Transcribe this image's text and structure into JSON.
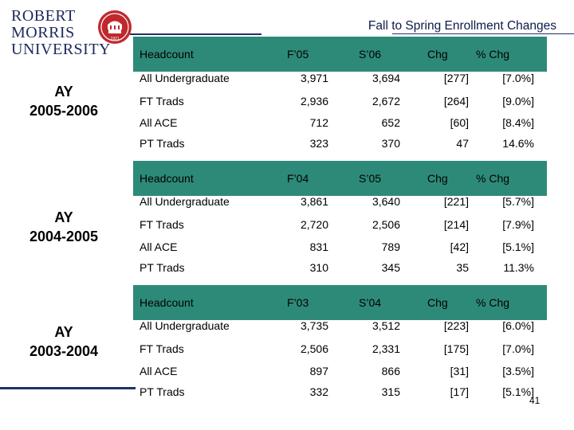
{
  "logo": {
    "line1": "ROBERT",
    "line2": "MORRIS",
    "line3": "UNIVERSITY",
    "seal_year": "1921"
  },
  "slide_title": "Fall to Spring Enrollment Changes",
  "page_number": "41",
  "sections": [
    {
      "ay_label": "AY",
      "ay_years": "2005-2006",
      "header": [
        "Headcount",
        "F’05",
        "S’06",
        "Chg",
        "% Chg"
      ],
      "rows": [
        [
          "All Undergraduate",
          "3,971",
          "3,694",
          "[277]",
          "[7.0%]"
        ],
        [
          "FT Trads",
          "2,936",
          "2,672",
          "[264]",
          "[9.0%]"
        ],
        [
          "All ACE",
          "712",
          "652",
          "[60]",
          "[8.4%]"
        ],
        [
          "PT Trads",
          "323",
          "370",
          "47",
          "14.6%"
        ]
      ]
    },
    {
      "ay_label": "AY",
      "ay_years": "2004-2005",
      "header": [
        "Headcount",
        "F’04",
        "S’05",
        "Chg",
        "% Chg"
      ],
      "rows": [
        [
          "All Undergraduate",
          "3,861",
          "3,640",
          "[221]",
          "[5.7%]"
        ],
        [
          "FT Trads",
          "2,720",
          "2,506",
          "[214]",
          "[7.9%]"
        ],
        [
          "All ACE",
          "831",
          "789",
          "[42]",
          "[5.1%]"
        ],
        [
          "PT Trads",
          "310",
          "345",
          "35",
          "11.3%"
        ]
      ]
    },
    {
      "ay_label": "AY",
      "ay_years": "2003-2004",
      "header": [
        "Headcount",
        "F’03",
        "S’04",
        "Chg",
        "% Chg"
      ],
      "rows": [
        [
          "All Undergraduate",
          "3,735",
          "3,512",
          "[223]",
          "[6.0%]"
        ],
        [
          "FT Trads",
          "2,506",
          "2,331",
          "[175]",
          "[7.0%]"
        ],
        [
          "All ACE",
          "897",
          "866",
          "[31]",
          "[3.5%]"
        ],
        [
          "PT Trads",
          "332",
          "315",
          "[17]",
          "[5.1%]"
        ]
      ]
    }
  ],
  "colors": {
    "header_bg": "#2e8a78",
    "brand_navy": "#1c2a5a",
    "seal_red": "#c0282d"
  }
}
